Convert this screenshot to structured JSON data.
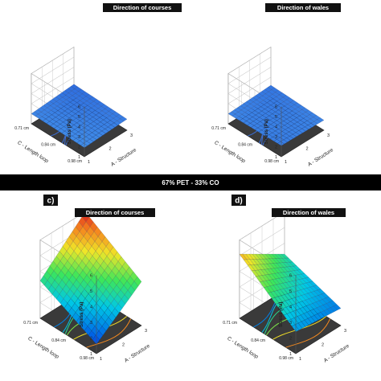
{
  "band_label": "67% PET - 33% CO",
  "chart_data": [
    {
      "type": "surface",
      "panel_label": "",
      "title": "Direction of courses",
      "zlabel": "Stress (Pa)",
      "xlabel": "A - Structure",
      "ylabel": "C - Length loop",
      "x_ticks": [
        "1",
        "2",
        "3"
      ],
      "y_ticks": [
        "0.71 cm",
        "0.84 cm",
        "0.98 cm"
      ],
      "z_ticks": [
        "1",
        "2",
        "3",
        "4",
        "5",
        "6"
      ],
      "zlim": [
        1,
        6
      ],
      "surface_corners": {
        "x1_y071": 2.0,
        "x3_y071": 2.3,
        "x1_y098": 1.9,
        "x3_y098": 2.1
      },
      "colormap": "blue"
    },
    {
      "type": "surface",
      "panel_label": "",
      "title": "Direction of wales",
      "zlabel": "Stress (Pa)",
      "xlabel": "A - Structure",
      "ylabel": "C - Length loop",
      "x_ticks": [
        "1",
        "2",
        "3"
      ],
      "y_ticks": [
        "0.71 cm",
        "0.84 cm",
        "0.98 cm"
      ],
      "z_ticks": [
        "1",
        "2",
        "3",
        "4",
        "5",
        "6"
      ],
      "zlim": [
        1,
        6
      ],
      "surface_corners": {
        "x1_y071": 2.0,
        "x3_y071": 2.2,
        "x1_y098": 2.1,
        "x3_y098": 2.0
      },
      "colormap": "blue"
    },
    {
      "type": "surface",
      "panel_label": "c)",
      "title": "Direction of courses",
      "zlabel": "Stress (Pa)",
      "xlabel": "A - Structure",
      "ylabel": "C - Length loop",
      "x_ticks": [
        "1",
        "2",
        "3"
      ],
      "y_ticks": [
        "0.71 cm",
        "0.84 cm",
        "0.98 cm"
      ],
      "z_ticks": [
        "1",
        "2",
        "3",
        "4",
        "5",
        "6"
      ],
      "zlim": [
        1,
        6
      ],
      "surface_corners": {
        "x1_y071": 3.4,
        "x3_y071": 6.0,
        "x1_y098": 1.6,
        "x3_y098": 3.8
      },
      "colormap": "jet"
    },
    {
      "type": "surface",
      "panel_label": "d)",
      "title": "Direction of wales",
      "zlabel": "Stress (Pa)",
      "xlabel": "A - Structure",
      "ylabel": "C - Length loop",
      "x_ticks": [
        "1",
        "2",
        "3"
      ],
      "y_ticks": [
        "0.71 cm",
        "0.84 cm",
        "0.98 cm"
      ],
      "z_ticks": [
        "1",
        "2",
        "3",
        "4",
        "5",
        "6"
      ],
      "zlim": [
        1,
        6
      ],
      "surface_corners": {
        "x1_y071": 5.1,
        "x3_y071": 3.3,
        "x1_y098": 2.4,
        "x3_y098": 2.1
      },
      "colormap": "jet"
    }
  ]
}
